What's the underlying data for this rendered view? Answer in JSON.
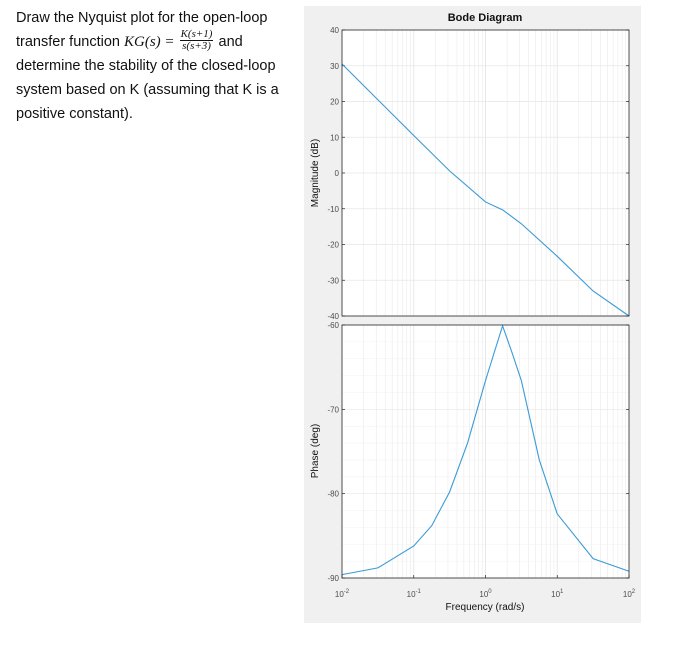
{
  "problem": {
    "line1": "Draw the Nyquist plot for the open-loop",
    "line2_prefix": "transfer function",
    "tf_lhs": "KG(s) =",
    "tf_num": "K(s+1)",
    "tf_den": "s(s+3)",
    "line2_suffix": "and",
    "line3": "determine the stability of the closed-loop",
    "line4": "system based on K (assuming that K is a",
    "line5": "positive constant)."
  },
  "chart_data": {
    "type": "line",
    "title": "Bode Diagram",
    "xlabel": "Frequency (rad/s)",
    "xscale": "log",
    "xlim": [
      0.01,
      100
    ],
    "x_ticks": [
      {
        "base": "10",
        "exp": "-2"
      },
      {
        "base": "10",
        "exp": "-1"
      },
      {
        "base": "10",
        "exp": "0"
      },
      {
        "base": "10",
        "exp": "1"
      },
      {
        "base": "10",
        "exp": "2"
      }
    ],
    "magnitude": {
      "ylabel": "Magnitude (dB)",
      "ylim": [
        -40,
        40
      ],
      "yticks": [
        "40",
        "30",
        "20",
        "10",
        "0",
        "-10",
        "-20",
        "-30",
        "-40"
      ],
      "x": [
        0.01,
        0.0316,
        0.1,
        0.316,
        1,
        1.73,
        3.16,
        10,
        31.6,
        100
      ],
      "y": [
        30.5,
        20.5,
        10.5,
        0.6,
        -8.1,
        -10.3,
        -14.2,
        -23.3,
        -33.0,
        -43.0
      ]
    },
    "phase": {
      "ylabel": "Phase (deg)",
      "ylim": [
        -90,
        -60
      ],
      "yticks": [
        "-60",
        "-70",
        "-80",
        "-90"
      ],
      "x": [
        0.01,
        0.0316,
        0.1,
        0.178,
        0.316,
        0.562,
        1,
        1.33,
        1.73,
        2.37,
        3.16,
        5.62,
        10,
        31.6,
        100
      ],
      "y": [
        -89.6,
        -88.8,
        -86.2,
        -83.8,
        -79.8,
        -74.0,
        -66.6,
        -63.2,
        -60.1,
        -63.4,
        -66.6,
        -76.0,
        -82.4,
        -87.7,
        -89.2
      ]
    },
    "line_color": "#3a9bd6",
    "grid": true
  }
}
